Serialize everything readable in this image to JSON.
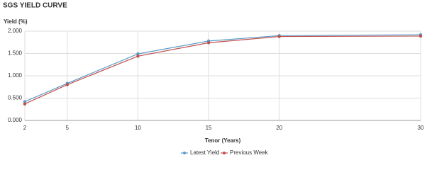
{
  "chart_data": {
    "type": "line",
    "title": "SGS YIELD CURVE",
    "y_label": "Yield (%)",
    "x_label": "Tenor (Years)",
    "x": [
      2,
      5,
      10,
      15,
      20,
      30
    ],
    "series": [
      {
        "name": "Latest Yield",
        "color": "#5b9bc8",
        "values": [
          0.42,
          0.83,
          1.49,
          1.78,
          1.9,
          1.92
        ]
      },
      {
        "name": "Previous Week",
        "color": "#c0504d",
        "values": [
          0.37,
          0.8,
          1.44,
          1.74,
          1.88,
          1.89
        ]
      }
    ],
    "xlim": [
      2,
      30
    ],
    "xticks": [
      2,
      5,
      10,
      15,
      20,
      30
    ],
    "ylim": [
      0,
      2
    ],
    "yticks": [
      {
        "value": 0,
        "label": "0.000"
      },
      {
        "value": 0.5,
        "label": "0.500"
      },
      {
        "value": 1,
        "label": "1.000"
      },
      {
        "value": 1.5,
        "label": "1.500"
      },
      {
        "value": 2,
        "label": "2.000"
      }
    ],
    "grid": true,
    "legend": "bottom"
  }
}
